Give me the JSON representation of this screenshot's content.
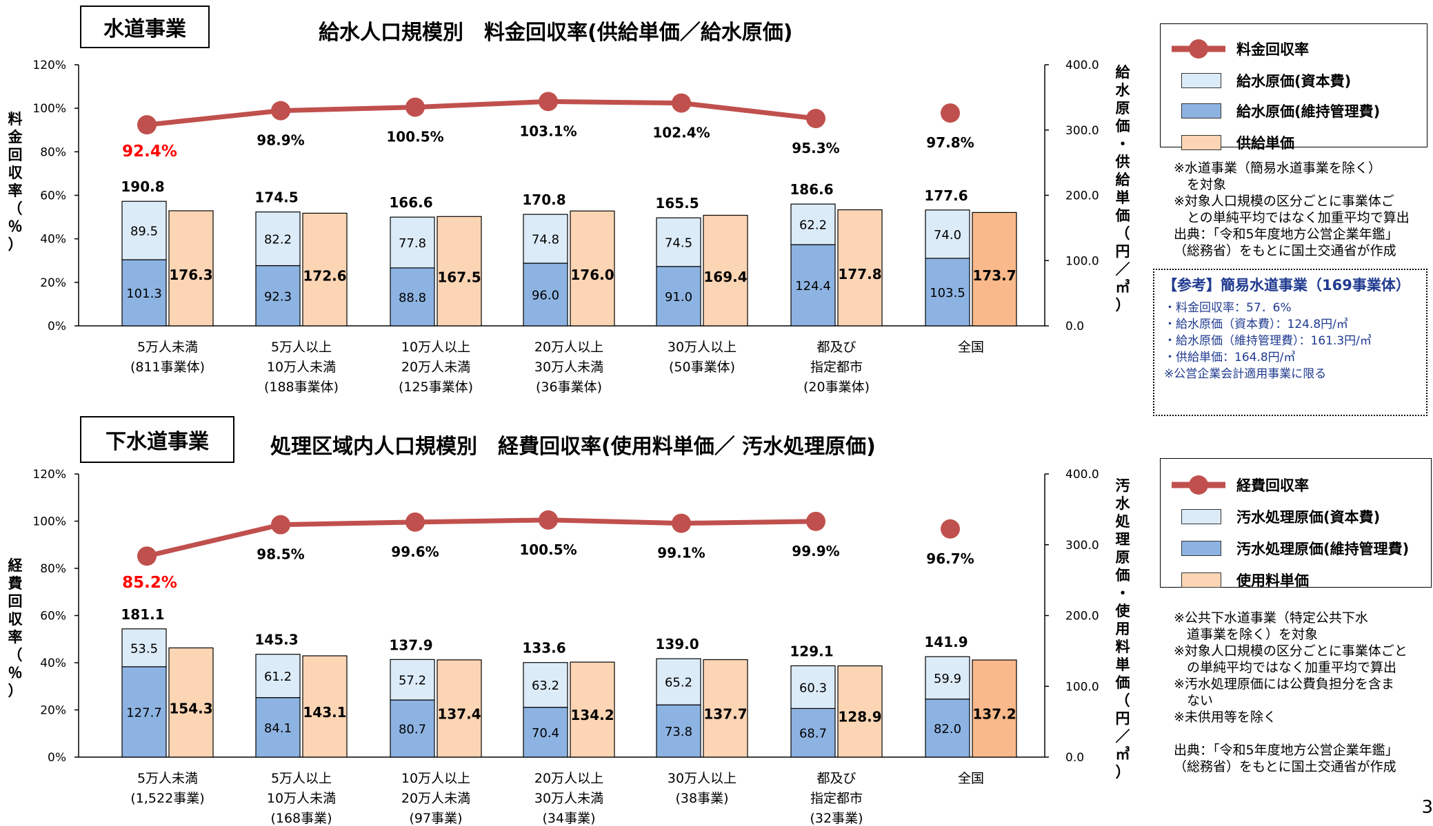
{
  "page_number": "3",
  "colors": {
    "line": "#c0504d",
    "capital": "#dcebf8",
    "maintenance": "#8db3e2",
    "unit_price": "#fcd5b4",
    "unit_price_total": "#f9b98a",
    "highlight": "#ff0000",
    "ref_text": "#1f3a8f"
  },
  "water": {
    "section_label": "水道事業",
    "title": "給水人口規模別　料金回収率(供給単価／給水原価)",
    "legend": {
      "line": "料金回収率",
      "capital": "給水原価(資本費)",
      "maintenance": "給水原価(維持管理費)",
      "unit": "供給単価"
    },
    "notes": "※水道事業（簡易水道事業を除く）\n　を対象\n※対象人口規模の区分ごとに事業体ご\n　との単純平均ではなく加重平均で算出\n出典：「令和5年度地方公営企業年鑑」\n（総務省）をもとに国土交通省が作成",
    "reference": {
      "title": "【参考】簡易水道事業（169事業体）",
      "lines": [
        "・料金回収率：57．6%",
        "・給水原価（資本費）：124.8円/㎥",
        "・給水原価（維持管理費）：161.3円/㎥",
        "・供給単価：164.8円/㎥",
        "※公営企業会計適用事業に限る"
      ]
    }
  },
  "sewer": {
    "section_label": "下水道事業",
    "title": "処理区域内人口規模別　経費回収率(使用料単価／ 汚水処理原価)",
    "legend": {
      "line": "経費回収率",
      "capital": "汚水処理原価(資本費)",
      "maintenance": "汚水処理原価(維持管理費)",
      "unit": "使用料単価"
    },
    "notes": "※公共下水道事業（特定公共下水\n　道事業を除く）を対象\n※対象人口規模の区分ごとに事業体ごと\n　の単純平均ではなく加重平均で算出\n※汚水処理原価には公費負担分を含ま\n　ない\n※未供用等を除く\n\n出典：「令和5年度地方公営企業年鑑」\n（総務省）をもとに国土交通省が作成"
  },
  "chart_data": [
    {
      "type": "bar",
      "subtype": "stacked-bar-with-line",
      "title": "給水人口規模別　料金回収率(供給単価／給水原価)",
      "ylabel_left": "料金回収率（％）",
      "ylabel_right": "給水原価・供給単価（円／㎥）",
      "y_left": {
        "min": 0,
        "max": 120,
        "ticks": [
          "0%",
          "20%",
          "40%",
          "60%",
          "80%",
          "100%",
          "120%"
        ]
      },
      "y_right": {
        "min": 0,
        "max": 400,
        "ticks": [
          "0.0",
          "100.0",
          "200.0",
          "300.0",
          "400.0"
        ]
      },
      "categories": [
        [
          "5万人未満",
          "(811事業体)"
        ],
        [
          "5万人以上",
          "10万人未満",
          "(188事業体)"
        ],
        [
          "10万人以上",
          "20万人未満",
          "(125事業体)"
        ],
        [
          "20万人以上",
          "30万人未満",
          "(36事業体)"
        ],
        [
          "30万人以上",
          "(50事業体)"
        ],
        [
          "都及び",
          "指定都市",
          "(20事業体)"
        ],
        [
          "全国"
        ]
      ],
      "series": [
        {
          "name": "給水原価(維持管理費)",
          "values": [
            101.3,
            92.3,
            88.8,
            96.0,
            91.0,
            124.4,
            103.5
          ]
        },
        {
          "name": "給水原価(資本費)",
          "values": [
            89.5,
            82.2,
            77.8,
            74.8,
            74.5,
            62.2,
            74.0
          ]
        },
        {
          "name": "供給単価",
          "values": [
            176.3,
            172.6,
            167.5,
            176.0,
            169.4,
            177.8,
            173.7
          ]
        },
        {
          "name": "料金回収率",
          "values": [
            92.4,
            98.9,
            100.5,
            103.1,
            102.4,
            95.3,
            97.8
          ]
        }
      ],
      "totals": [
        "190.8",
        "174.5",
        "166.6",
        "170.8",
        "165.5",
        "186.6",
        "177.6"
      ],
      "rate_labels": [
        "92.4%",
        "98.9%",
        "100.5%",
        "103.1%",
        "102.4%",
        "95.3%",
        "97.8%"
      ],
      "value_labels": {
        "maintenance": [
          "101.3",
          "92.3",
          "88.8",
          "96.0",
          "91.0",
          "124.4",
          "103.5"
        ],
        "capital": [
          "89.5",
          "82.2",
          "77.8",
          "74.8",
          "74.5",
          "62.2",
          "74.0"
        ],
        "unit": [
          "176.3",
          "172.6",
          "167.5",
          "176.0",
          "169.4",
          "177.8",
          "173.7"
        ]
      },
      "highlight_index": 0,
      "line_connects_first": 6
    },
    {
      "type": "bar",
      "subtype": "stacked-bar-with-line",
      "title": "処理区域内人口規模別　経費回収率(使用料単価／ 汚水処理原価)",
      "ylabel_left": "経費回収率（％）",
      "ylabel_right": "汚水処理原価・使用料単価（円／㎥）",
      "y_left": {
        "min": 0,
        "max": 120,
        "ticks": [
          "0%",
          "20%",
          "40%",
          "60%",
          "80%",
          "100%",
          "120%"
        ]
      },
      "y_right": {
        "min": 0,
        "max": 400,
        "ticks": [
          "0.0",
          "100.0",
          "200.0",
          "300.0",
          "400.0"
        ]
      },
      "categories": [
        [
          "5万人未満",
          "(1,522事業)"
        ],
        [
          "5万人以上",
          "10万人未満",
          "(168事業)"
        ],
        [
          "10万人以上",
          "20万人未満",
          "(97事業)"
        ],
        [
          "20万人以上",
          "30万人未満",
          "(34事業)"
        ],
        [
          "30万人以上",
          "(38事業)"
        ],
        [
          "都及び",
          "指定都市",
          "(32事業)"
        ],
        [
          "全国"
        ]
      ],
      "series": [
        {
          "name": "汚水処理原価(維持管理費)",
          "values": [
            127.7,
            84.1,
            80.7,
            70.4,
            73.8,
            68.7,
            82.0
          ]
        },
        {
          "name": "汚水処理原価(資本費)",
          "values": [
            53.5,
            61.2,
            57.2,
            63.2,
            65.2,
            60.3,
            59.9
          ]
        },
        {
          "name": "使用料単価",
          "values": [
            154.3,
            143.1,
            137.4,
            134.2,
            137.7,
            128.9,
            137.2
          ]
        },
        {
          "name": "経費回収率",
          "values": [
            85.2,
            98.5,
            99.6,
            100.5,
            99.1,
            99.9,
            96.7
          ]
        }
      ],
      "totals": [
        "181.1",
        "145.3",
        "137.9",
        "133.6",
        "139.0",
        "129.1",
        "141.9"
      ],
      "rate_labels": [
        "85.2%",
        "98.5%",
        "99.6%",
        "100.5%",
        "99.1%",
        "99.9%",
        "96.7%"
      ],
      "value_labels": {
        "maintenance": [
          "127.7",
          "84.1",
          "80.7",
          "70.4",
          "73.8",
          "68.7",
          "82.0"
        ],
        "capital": [
          "53.5",
          "61.2",
          "57.2",
          "63.2",
          "65.2",
          "60.3",
          "59.9"
        ],
        "unit": [
          "154.3",
          "143.1",
          "137.4",
          "134.2",
          "137.7",
          "128.9",
          "137.2"
        ]
      },
      "highlight_index": 0,
      "line_connects_first": 6
    }
  ]
}
